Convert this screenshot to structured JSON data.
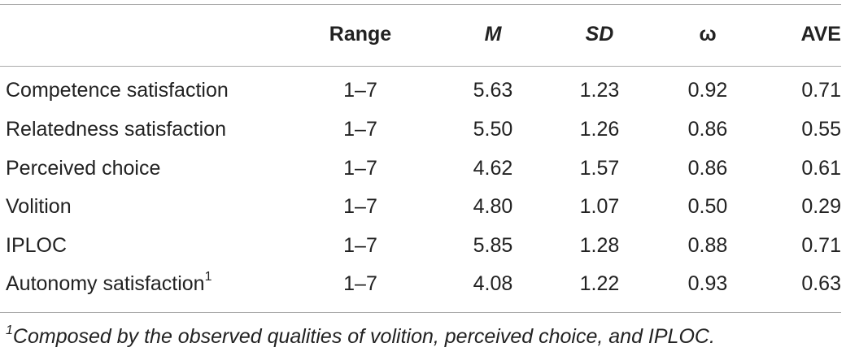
{
  "table": {
    "headers": {
      "range": "Range",
      "m": "M",
      "sd": "SD",
      "omega": "ω",
      "ave": "AVE"
    },
    "rows": [
      {
        "label": "Competence satisfaction",
        "sup": "",
        "range": "1–7",
        "m": "5.63",
        "sd": "1.23",
        "omega": "0.92",
        "ave": "0.71"
      },
      {
        "label": "Relatedness satisfaction",
        "sup": "",
        "range": "1–7",
        "m": "5.50",
        "sd": "1.26",
        "omega": "0.86",
        "ave": "0.55"
      },
      {
        "label": "Perceived choice",
        "sup": "",
        "range": "1–7",
        "m": "4.62",
        "sd": "1.57",
        "omega": "0.86",
        "ave": "0.61"
      },
      {
        "label": "Volition",
        "sup": "",
        "range": "1–7",
        "m": "4.80",
        "sd": "1.07",
        "omega": "0.50",
        "ave": "0.29"
      },
      {
        "label": "IPLOC",
        "sup": "",
        "range": "1–7",
        "m": "5.85",
        "sd": "1.28",
        "omega": "0.88",
        "ave": "0.71"
      },
      {
        "label": "Autonomy satisfaction",
        "sup": "1",
        "range": "1–7",
        "m": "4.08",
        "sd": "1.22",
        "omega": "0.93",
        "ave": "0.63"
      }
    ],
    "footnote": {
      "marker": "1",
      "text": "Composed by the observed qualities of volition, perceived choice, and IPLOC."
    }
  }
}
